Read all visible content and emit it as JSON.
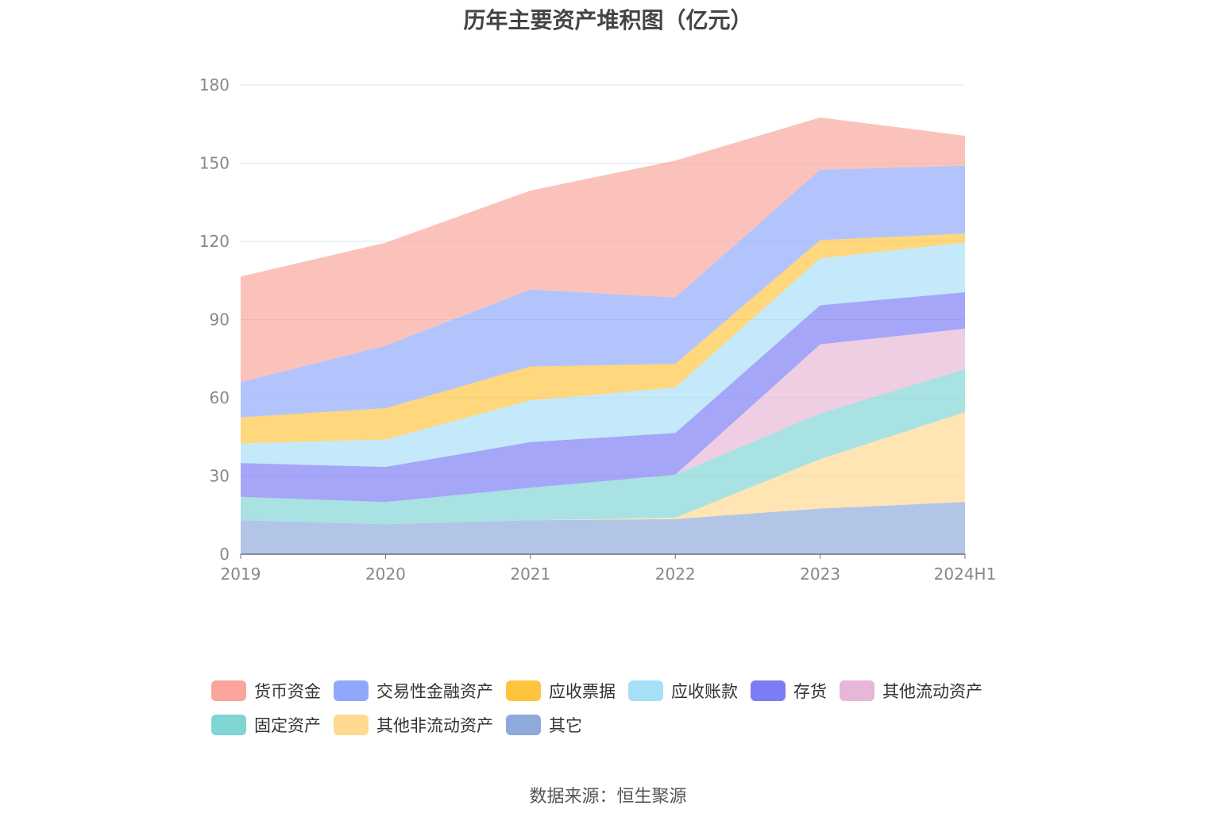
{
  "chart_data": {
    "type": "area",
    "stacked": true,
    "title": "历年主要资产堆积图（亿元）",
    "source": "数据来源：恒生聚源",
    "categories": [
      "2019",
      "2020",
      "2021",
      "2022",
      "2023",
      "2024H1"
    ],
    "y_ticks": [
      "0",
      "30",
      "60",
      "90",
      "120",
      "150",
      "180"
    ],
    "ylim": [
      0,
      180
    ],
    "grid": true,
    "legend_position": "bottom",
    "series": [
      {
        "name": "其它",
        "color": "#8EAADB",
        "values": [
          13,
          11.5,
          13,
          13.5,
          17.5,
          20
        ]
      },
      {
        "name": "其他非流动资产",
        "color": "#FFD98F",
        "values": [
          0,
          0,
          0,
          0.5,
          19,
          34.5
        ]
      },
      {
        "name": "固定资产",
        "color": "#7FD4D4",
        "values": [
          9,
          8.5,
          12.5,
          16.5,
          17.5,
          16.5
        ]
      },
      {
        "name": "其他流动资产",
        "color": "#E8B6D6",
        "values": [
          0,
          0,
          0,
          0,
          26.5,
          15.5
        ]
      },
      {
        "name": "存货",
        "color": "#7C7CF4",
        "values": [
          13,
          13.5,
          17.5,
          16,
          15,
          14
        ]
      },
      {
        "name": "应收账款",
        "color": "#A8DFF8",
        "values": [
          7.5,
          10.5,
          16,
          17.5,
          18,
          19
        ]
      },
      {
        "name": "应收票据",
        "color": "#FFC43E",
        "values": [
          10,
          12,
          13,
          9,
          7,
          3.5
        ]
      },
      {
        "name": "交易性金融资产",
        "color": "#8FA8FB",
        "values": [
          13.5,
          24,
          29.5,
          25.5,
          27,
          26
        ]
      },
      {
        "name": "货币资金",
        "color": "#F9A59B",
        "values": [
          40.5,
          39.5,
          38,
          52.5,
          20,
          11.5
        ]
      }
    ]
  },
  "legend_rows": [
    [
      "货币资金",
      "交易性金融资产",
      "应收票据",
      "应收账款",
      "存货",
      "其他流动资产"
    ],
    [
      "固定资产",
      "其他非流动资产",
      "其它"
    ]
  ]
}
